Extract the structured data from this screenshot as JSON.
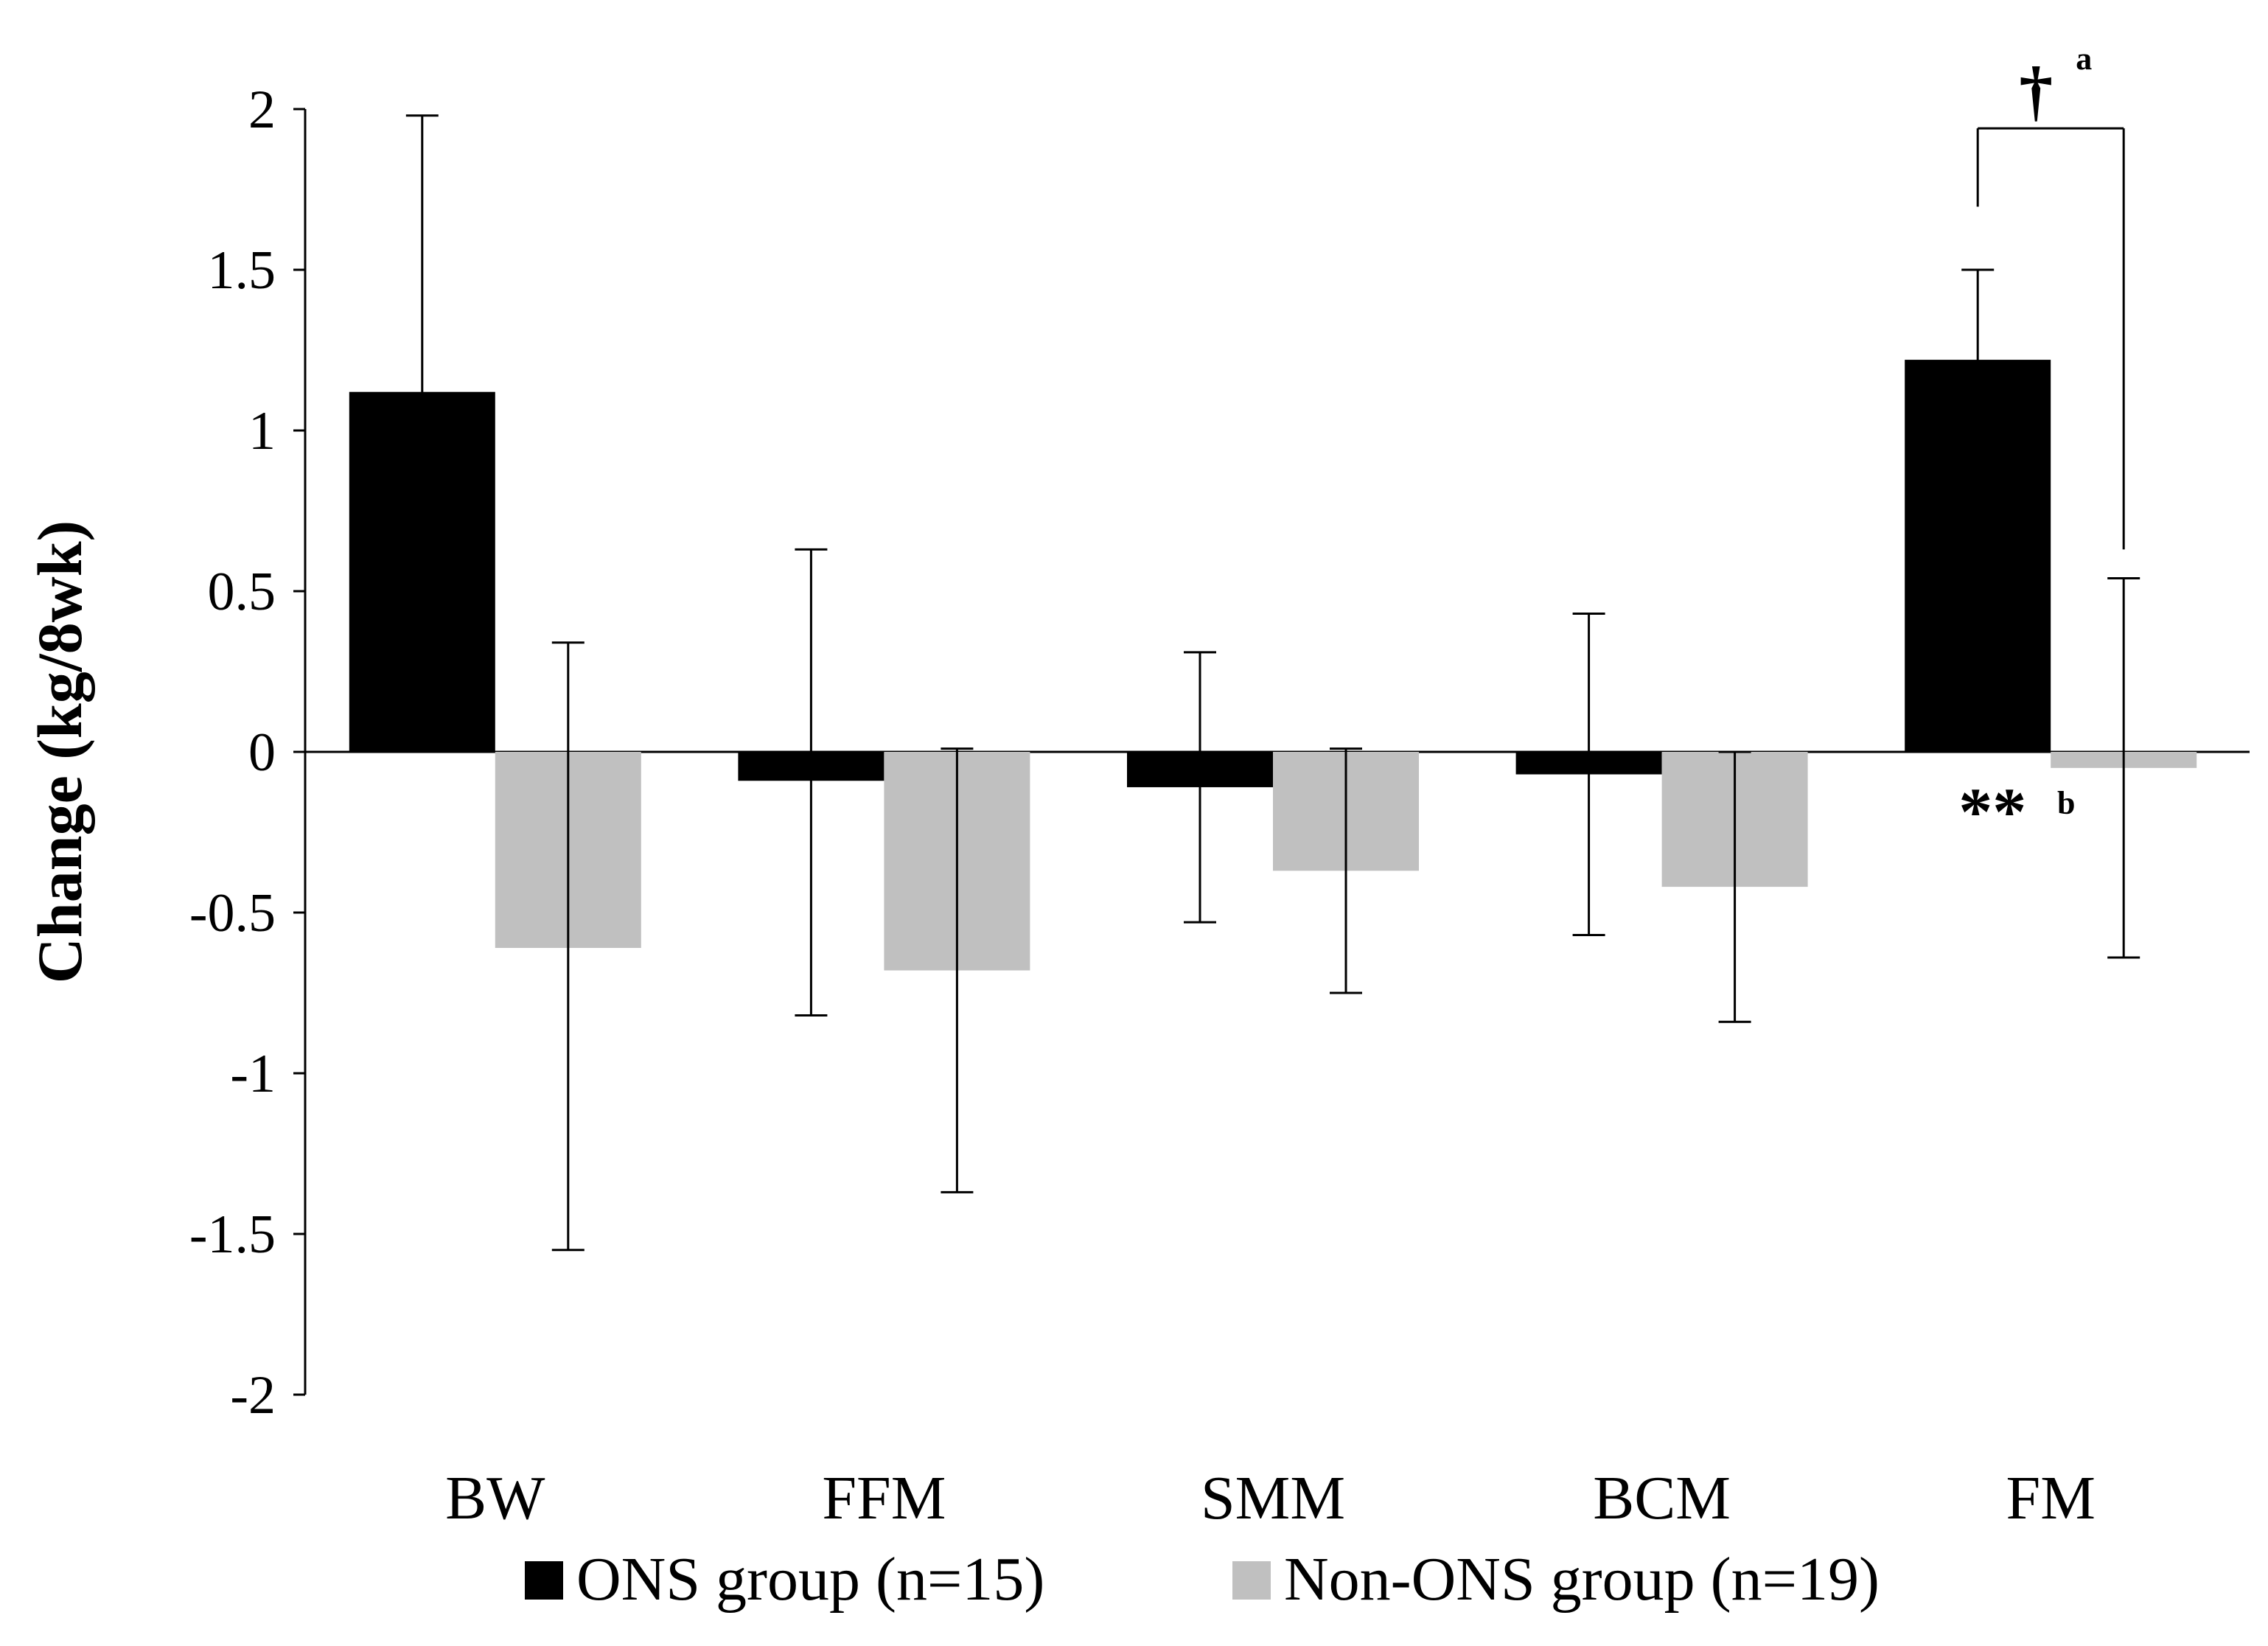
{
  "chart_data": {
    "type": "bar",
    "categories": [
      "BW",
      "FFM",
      "SMM",
      "BCM",
      "FM"
    ],
    "series": [
      {
        "name": "ONS group (n=15)",
        "color": "#000000",
        "values": [
          1.12,
          -0.09,
          -0.11,
          -0.07,
          1.22
        ],
        "error_upper": [
          1.98,
          0.63,
          0.31,
          0.43,
          1.5
        ],
        "error_lower": [
          0.26,
          -0.82,
          -0.53,
          -0.57,
          0.94
        ]
      },
      {
        "name": "Non-ONS group (n=19)",
        "color": "#c0c0c0",
        "values": [
          -0.61,
          -0.68,
          -0.37,
          -0.42,
          -0.05
        ],
        "error_upper": [
          0.34,
          0.01,
          0.01,
          0.0,
          0.54
        ],
        "error_lower": [
          -1.55,
          -1.37,
          -0.75,
          -0.84,
          -0.64
        ]
      }
    ],
    "ylabel": "Change (kg/8wk)",
    "xlabel": "",
    "ylim": [
      -2,
      2
    ],
    "yticks": [
      "2",
      "1.5",
      "1",
      "0.5",
      "0",
      "-0.5",
      "-1",
      "-1.5",
      "-2"
    ],
    "grid": false,
    "legend": {
      "position": "bottom"
    },
    "annotations": [
      {
        "category": "FM",
        "text": "**",
        "superscript": "b",
        "placement": "below ONS bar"
      },
      {
        "category": "FM",
        "text": "†",
        "superscript": "a",
        "placement": "bracket between ONS and Non-ONS bars"
      }
    ]
  }
}
